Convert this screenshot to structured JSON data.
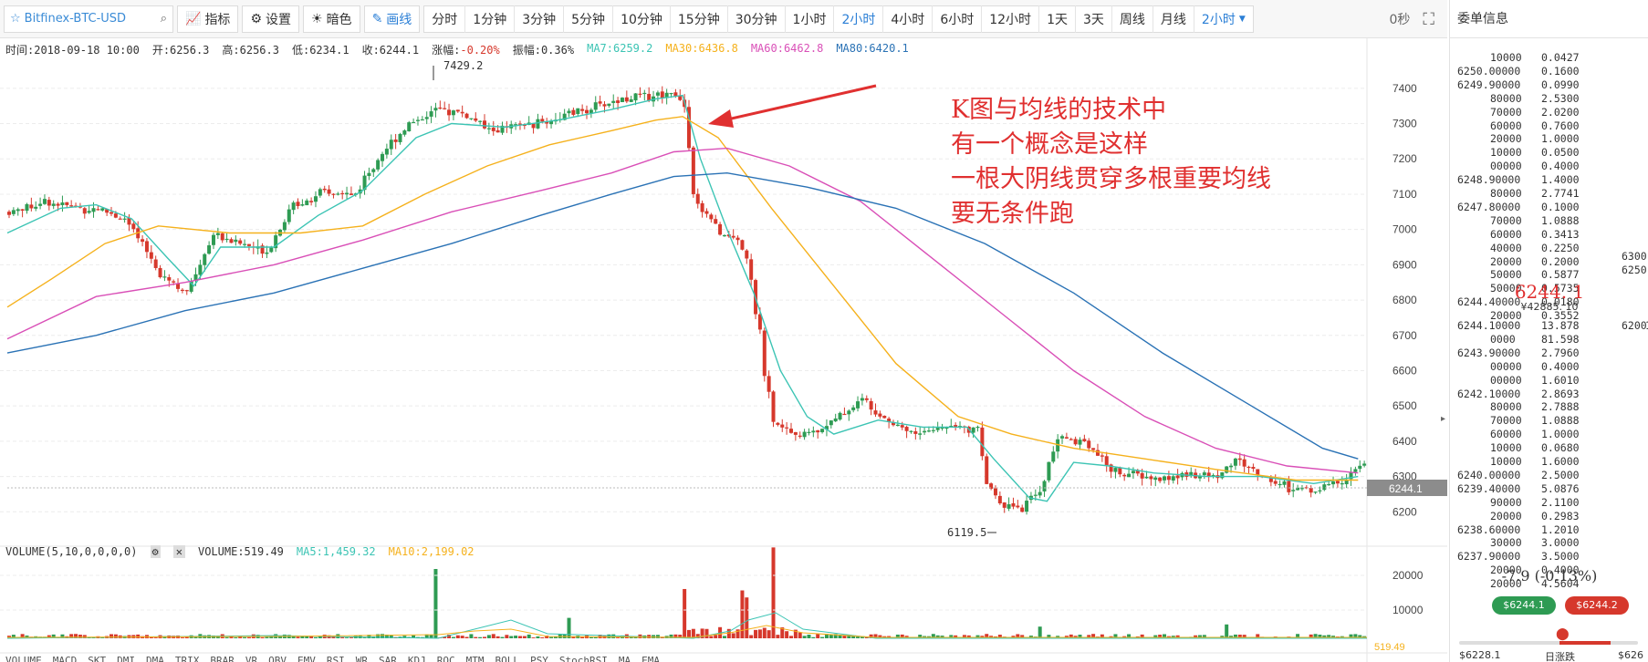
{
  "toolbar": {
    "symbol": "Bitfinex-BTC-USD",
    "indicators_label": "指标",
    "settings_label": "设置",
    "theme_label": "暗色",
    "draw_label": "画线",
    "intervals": [
      "分时",
      "1分钟",
      "3分钟",
      "5分钟",
      "10分钟",
      "15分钟",
      "30分钟",
      "1小时",
      "2小时",
      "4小时",
      "6小时",
      "12小时",
      "1天",
      "3天",
      "周线",
      "月线"
    ],
    "active_interval": "2小时",
    "interval_dropdown": "2小时",
    "countdown": "0秒"
  },
  "info": {
    "time": "时间:2018-09-18 10:00",
    "open": "开:6256.3",
    "high": "高:6256.3",
    "low": "低:6234.1",
    "close": "收:6244.1",
    "change_label": "涨幅:",
    "change_value": "-0.20%",
    "amplitude": "振幅:0.36%",
    "ma7": "MA7:6259.2",
    "ma30": "MA30:6436.8",
    "ma60": "MA60:6462.8",
    "ma80": "MA80:6420.1"
  },
  "volume_info": {
    "title": "VOLUME(5,10,0,0,0,0)",
    "volume": "VOLUME:519.49",
    "ma5": "MA5:1,459.32",
    "ma10": "MA10:2,199.02",
    "last_marker": "519.49"
  },
  "indicator_bar": [
    "VOLUME",
    "MACD",
    "SKT",
    "DMI",
    "DMA",
    "TRIX",
    "BRAR",
    "VR",
    "OBV",
    "EMV",
    "RSI",
    "WR",
    "SAR",
    "KDJ",
    "ROC",
    "MTM",
    "BOLL",
    "PSY",
    "StochRSI",
    "MA",
    "EMA"
  ],
  "annotation": {
    "lines": [
      "K图与均线的技术中",
      "有一个概念是这样",
      "一根大阴线贯穿多根重要均线",
      "要无条件跑"
    ]
  },
  "colors": {
    "up": "#2e9b53",
    "down": "#d6382c",
    "ma7": "#3cc4b4",
    "ma30": "#f5b11c",
    "ma60": "#d94fb7",
    "ma80": "#2a72b5",
    "annotation": "#e03030"
  },
  "chart_data": {
    "type": "candlestick",
    "y_ticks": [
      7400,
      7300,
      7200,
      7100,
      7000,
      6900,
      6800,
      6700,
      6600,
      6500,
      6400,
      6300,
      6200
    ],
    "ylim": [
      6100,
      7490
    ],
    "high_marker": "7429.2",
    "low_marker": "6119.5",
    "last_price_label": "6244.1",
    "volume_ticks": [
      "20000",
      "10000"
    ],
    "keypoints": [
      [
        0,
        7050
      ],
      [
        8,
        7080
      ],
      [
        16,
        7060
      ],
      [
        20,
        7060
      ],
      [
        26,
        7030
      ],
      [
        34,
        6880
      ],
      [
        40,
        6820
      ],
      [
        46,
        6990
      ],
      [
        52,
        6960
      ],
      [
        58,
        6940
      ],
      [
        64,
        7070
      ],
      [
        70,
        7100
      ],
      [
        78,
        7100
      ],
      [
        84,
        7220
      ],
      [
        90,
        7300
      ],
      [
        96,
        7340
      ],
      [
        102,
        7330
      ],
      [
        108,
        7280
      ],
      [
        114,
        7290
      ],
      [
        122,
        7310
      ],
      [
        130,
        7340
      ],
      [
        138,
        7370
      ],
      [
        144,
        7380
      ],
      [
        150,
        7390
      ],
      [
        152,
        7350
      ],
      [
        154,
        7100
      ],
      [
        158,
        7020
      ],
      [
        162,
        6980
      ],
      [
        166,
        6930
      ],
      [
        168,
        6800
      ],
      [
        172,
        6450
      ],
      [
        176,
        6420
      ],
      [
        180,
        6420
      ],
      [
        186,
        6460
      ],
      [
        192,
        6520
      ],
      [
        198,
        6460
      ],
      [
        204,
        6420
      ],
      [
        210,
        6440
      ],
      [
        214,
        6450
      ],
      [
        218,
        6430
      ],
      [
        220,
        6280
      ],
      [
        224,
        6220
      ],
      [
        228,
        6210
      ],
      [
        232,
        6260
      ],
      [
        236,
        6410
      ],
      [
        242,
        6400
      ],
      [
        248,
        6320
      ],
      [
        254,
        6300
      ],
      [
        260,
        6290
      ],
      [
        266,
        6310
      ],
      [
        272,
        6300
      ],
      [
        276,
        6350
      ],
      [
        282,
        6300
      ],
      [
        288,
        6270
      ],
      [
        294,
        6260
      ],
      [
        300,
        6290
      ],
      [
        304,
        6330
      ]
    ],
    "ma_series": [
      {
        "name": "MA7",
        "points": [
          [
            0,
            6990
          ],
          [
            12,
            7060
          ],
          [
            20,
            7070
          ],
          [
            28,
            7030
          ],
          [
            36,
            6920
          ],
          [
            42,
            6840
          ],
          [
            48,
            6950
          ],
          [
            60,
            6950
          ],
          [
            70,
            7040
          ],
          [
            80,
            7110
          ],
          [
            92,
            7260
          ],
          [
            100,
            7300
          ],
          [
            112,
            7290
          ],
          [
            124,
            7310
          ],
          [
            136,
            7340
          ],
          [
            146,
            7370
          ],
          [
            152,
            7380
          ],
          [
            156,
            7200
          ],
          [
            162,
            7000
          ],
          [
            168,
            6820
          ],
          [
            174,
            6600
          ],
          [
            180,
            6470
          ],
          [
            186,
            6420
          ],
          [
            196,
            6460
          ],
          [
            206,
            6440
          ],
          [
            216,
            6440
          ],
          [
            222,
            6350
          ],
          [
            230,
            6240
          ],
          [
            234,
            6230
          ],
          [
            240,
            6340
          ],
          [
            248,
            6330
          ],
          [
            258,
            6310
          ],
          [
            270,
            6300
          ],
          [
            282,
            6300
          ],
          [
            294,
            6280
          ],
          [
            304,
            6300
          ]
        ]
      },
      {
        "name": "MA30",
        "points": [
          [
            0,
            6780
          ],
          [
            10,
            6860
          ],
          [
            22,
            6960
          ],
          [
            34,
            7010
          ],
          [
            50,
            6990
          ],
          [
            66,
            6990
          ],
          [
            80,
            7010
          ],
          [
            94,
            7100
          ],
          [
            108,
            7180
          ],
          [
            122,
            7240
          ],
          [
            136,
            7280
          ],
          [
            146,
            7310
          ],
          [
            152,
            7320
          ],
          [
            160,
            7260
          ],
          [
            172,
            7060
          ],
          [
            186,
            6840
          ],
          [
            200,
            6620
          ],
          [
            214,
            6470
          ],
          [
            226,
            6420
          ],
          [
            240,
            6380
          ],
          [
            256,
            6350
          ],
          [
            272,
            6320
          ],
          [
            290,
            6290
          ],
          [
            304,
            6290
          ]
        ]
      },
      {
        "name": "MA60",
        "points": [
          [
            0,
            6690
          ],
          [
            20,
            6810
          ],
          [
            40,
            6850
          ],
          [
            60,
            6900
          ],
          [
            80,
            6970
          ],
          [
            100,
            7050
          ],
          [
            120,
            7110
          ],
          [
            136,
            7160
          ],
          [
            150,
            7220
          ],
          [
            162,
            7230
          ],
          [
            176,
            7180
          ],
          [
            192,
            7080
          ],
          [
            208,
            6920
          ],
          [
            224,
            6760
          ],
          [
            240,
            6600
          ],
          [
            256,
            6470
          ],
          [
            272,
            6380
          ],
          [
            288,
            6330
          ],
          [
            304,
            6310
          ]
        ]
      },
      {
        "name": "MA80",
        "points": [
          [
            0,
            6650
          ],
          [
            20,
            6700
          ],
          [
            40,
            6770
          ],
          [
            60,
            6820
          ],
          [
            80,
            6890
          ],
          [
            100,
            6960
          ],
          [
            120,
            7040
          ],
          [
            136,
            7100
          ],
          [
            150,
            7150
          ],
          [
            162,
            7160
          ],
          [
            180,
            7120
          ],
          [
            200,
            7060
          ],
          [
            220,
            6960
          ],
          [
            240,
            6820
          ],
          [
            260,
            6650
          ],
          [
            280,
            6500
          ],
          [
            296,
            6380
          ],
          [
            304,
            6350
          ]
        ]
      }
    ]
  },
  "orderbook": {
    "title": "委单信息",
    "asks": [
      [
        "",
        "10000",
        "0.0427"
      ],
      [
        "6250.0",
        "0000",
        "0.1600"
      ],
      [
        "6249.9",
        "0000",
        "0.0990"
      ],
      [
        "",
        "80000",
        "2.5300"
      ],
      [
        "",
        "70000",
        "2.0200"
      ],
      [
        "",
        "60000",
        "0.7600"
      ],
      [
        "",
        "20000",
        "1.0000"
      ],
      [
        "",
        "10000",
        "0.0500"
      ],
      [
        "",
        "00000",
        "0.4000"
      ],
      [
        "6248.9",
        "0000",
        "1.4000"
      ],
      [
        "",
        "80000",
        "2.7741"
      ],
      [
        "6247.8",
        "0000",
        "0.1000"
      ],
      [
        "",
        "70000",
        "1.0888"
      ],
      [
        "",
        "60000",
        "0.3413"
      ],
      [
        "",
        "40000",
        "0.2250"
      ],
      [
        "",
        "20000",
        "0.2000"
      ],
      [
        "",
        "50000",
        "0.5877"
      ],
      [
        "",
        "50000",
        "0.5735"
      ],
      [
        "6244.4",
        "0000",
        "0.0180"
      ],
      [
        "",
        "20000",
        "0.3552"
      ]
    ],
    "ask_side": [
      "6300",
      "6250"
    ],
    "last_price": "6244. 1",
    "last_cny": "¥42885. 10",
    "bids": [
      [
        "6244.1",
        "0000",
        "13.878"
      ],
      [
        "",
        "0000",
        "81.598"
      ],
      [
        "6243.9",
        "0000",
        "2.7960"
      ],
      [
        "",
        "00000",
        "0.4000"
      ],
      [
        "",
        "00000",
        "1.6010"
      ],
      [
        "6242.1",
        "0000",
        "2.8693"
      ],
      [
        "",
        "80000",
        "2.7888"
      ],
      [
        "",
        "70000",
        "1.0888"
      ],
      [
        "",
        "60000",
        "1.0000"
      ],
      [
        "",
        "10000",
        "0.0680"
      ],
      [
        "",
        "10000",
        "1.6000"
      ],
      [
        "6240.0",
        "0000",
        "2.5000"
      ],
      [
        "6239.4",
        "0000",
        "5.0876"
      ],
      [
        "",
        "90000",
        "2.1100"
      ],
      [
        "",
        "20000",
        "0.2983"
      ],
      [
        "6238.6",
        "0000",
        "1.2010"
      ],
      [
        "",
        "30000",
        "3.0000"
      ],
      [
        "6237.9",
        "0000",
        "3.5000"
      ],
      [
        "",
        "20000",
        "0.4000"
      ],
      [
        "",
        "20000",
        "4.5604"
      ]
    ],
    "bid_side": [
      "6200"
    ],
    "bid_side2": "1",
    "change": "-7.9 (-0.13%)",
    "buy_price": "$6244.1",
    "sell_price": "$6244.2",
    "range_low": "$6228.1",
    "range_label": "日涨跌",
    "range_high": "$626"
  }
}
